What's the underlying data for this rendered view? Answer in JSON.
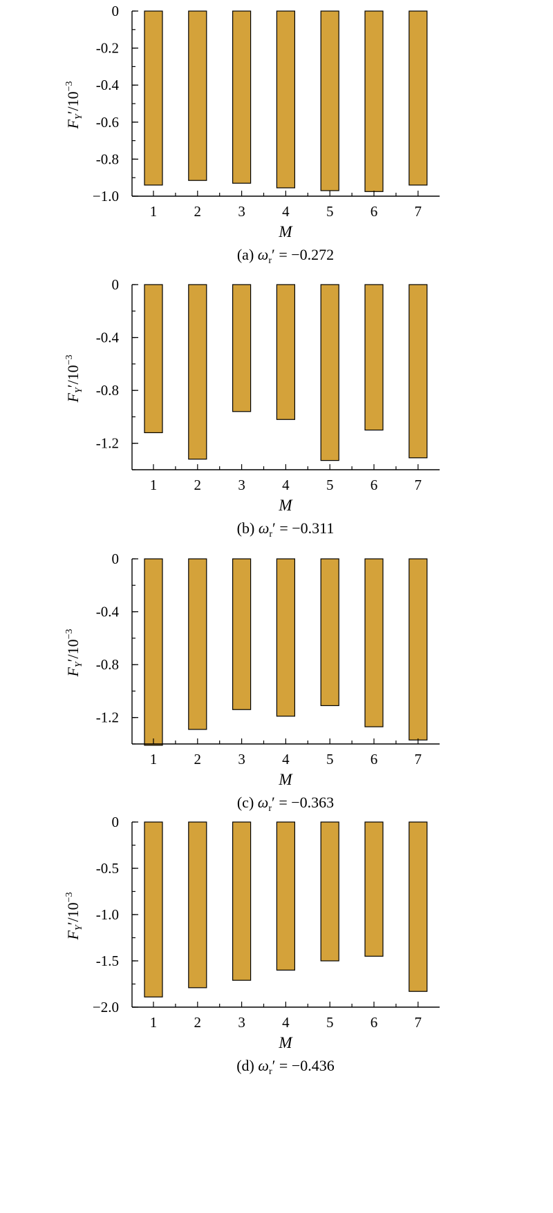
{
  "colors": {
    "bar_fill": "#D4A23A",
    "bar_stroke": "#000000",
    "axis": "#000000"
  },
  "chart_data": [
    {
      "type": "bar",
      "panel": "(a)",
      "caption": {
        "prefix": "(a)",
        "symbol": "ω",
        "subscript": "r",
        "prime": "′",
        "value": " = −0.272"
      },
      "xlabel": "M",
      "ylabel": {
        "main": "F",
        "sub": "Y",
        "rest": "′/10",
        "sup": "−3"
      },
      "categories": [
        "1",
        "2",
        "3",
        "4",
        "5",
        "6",
        "7"
      ],
      "values": [
        -0.94,
        -0.915,
        -0.93,
        -0.955,
        -0.97,
        -0.975,
        -0.94
      ],
      "ylim": [
        -1.0,
        0
      ],
      "yticks": [
        0,
        -0.2,
        -0.4,
        -0.6,
        -0.8,
        -1.0
      ],
      "yticklabels": [
        "0",
        "-0.2",
        "-0.4",
        "-0.6",
        "-0.8",
        "−1.0"
      ],
      "minor_ystep": 0.1
    },
    {
      "type": "bar",
      "panel": "(b)",
      "caption": {
        "prefix": "(b)",
        "symbol": "ω",
        "subscript": "r",
        "prime": "′",
        "value": " = −0.311"
      },
      "xlabel": "M",
      "ylabel": {
        "main": "F",
        "sub": "Y",
        "rest": "′/10",
        "sup": "−3"
      },
      "categories": [
        "1",
        "2",
        "3",
        "4",
        "5",
        "6",
        "7"
      ],
      "values": [
        -1.12,
        -1.32,
        -0.96,
        -1.02,
        -1.33,
        -1.1,
        -1.31
      ],
      "ylim": [
        -1.4,
        0
      ],
      "yticks": [
        0,
        -0.4,
        -0.8,
        -1.2
      ],
      "yticklabels": [
        "0",
        "-0.4",
        "-0.8",
        "-1.2"
      ],
      "minor_ystep": 0.2
    },
    {
      "type": "bar",
      "panel": "(c)",
      "caption": {
        "prefix": "(c)",
        "symbol": "ω",
        "subscript": "r",
        "prime": "′",
        "value": " = −0.363"
      },
      "xlabel": "M",
      "ylabel": {
        "main": "F",
        "sub": "Y",
        "rest": "′/10",
        "sup": "−3"
      },
      "categories": [
        "1",
        "2",
        "3",
        "4",
        "5",
        "6",
        "7"
      ],
      "values": [
        -1.41,
        -1.29,
        -1.14,
        -1.19,
        -1.11,
        -1.27,
        -1.37
      ],
      "ylim": [
        -1.4,
        0
      ],
      "yticks": [
        0,
        -0.4,
        -0.8,
        -1.2
      ],
      "yticklabels": [
        "0",
        "-0.4",
        "-0.8",
        "-1.2"
      ],
      "minor_ystep": 0.2
    },
    {
      "type": "bar",
      "panel": "(d)",
      "caption": {
        "prefix": "(d)",
        "symbol": "ω",
        "subscript": "r",
        "prime": "′",
        "value": " = −0.436"
      },
      "xlabel": "M",
      "ylabel": {
        "main": "F",
        "sub": "Y",
        "rest": "′/10",
        "sup": "−3"
      },
      "categories": [
        "1",
        "2",
        "3",
        "4",
        "5",
        "6",
        "7"
      ],
      "values": [
        -1.89,
        -1.79,
        -1.71,
        -1.6,
        -1.5,
        -1.45,
        -1.83
      ],
      "ylim": [
        -2.0,
        0
      ],
      "yticks": [
        0,
        -0.5,
        -1.0,
        -1.5,
        -2.0
      ],
      "yticklabels": [
        "0",
        "-0.5",
        "-1.0",
        "-1.5",
        "−2.0"
      ],
      "minor_ystep": 0.25
    }
  ]
}
